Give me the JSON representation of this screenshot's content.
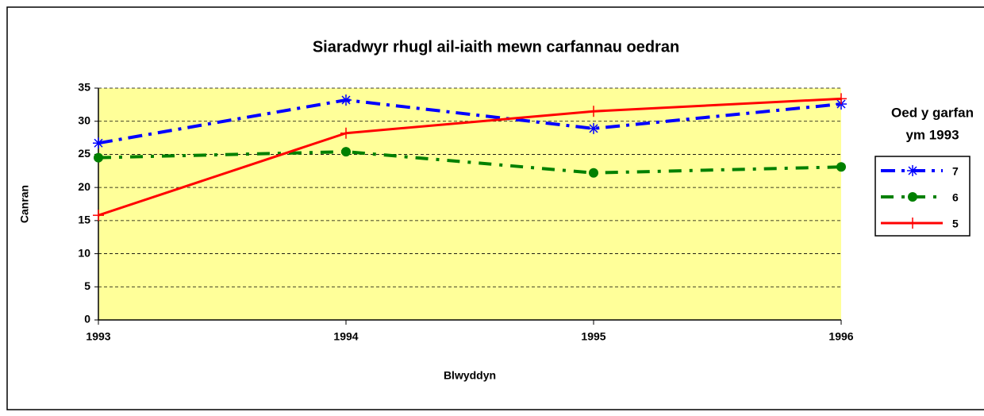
{
  "chart_data": {
    "type": "line",
    "title": "Siaradwyr rhugl ail-iaith mewn carfannau oedran",
    "x_label": "Blwyddyn",
    "y_label": "Canran",
    "categories": [
      "1993",
      "1994",
      "1995",
      "1996"
    ],
    "series": [
      {
        "name": "7",
        "color": "#0000ff",
        "dash": "dashdot",
        "marker": "star",
        "values": [
          26.7,
          33.2,
          28.9,
          32.6
        ]
      },
      {
        "name": "6",
        "color": "#008000",
        "dash": "dash",
        "marker": "circle",
        "values": [
          24.5,
          25.4,
          22.2,
          23.1
        ]
      },
      {
        "name": "5",
        "color": "#ff0000",
        "dash": "solid",
        "marker": "plus",
        "values": [
          15.8,
          28.2,
          31.5,
          33.4
        ]
      }
    ],
    "ylim": [
      0,
      35
    ],
    "yticks": [
      0,
      5,
      10,
      15,
      20,
      25,
      30,
      35
    ],
    "grid": true,
    "legend_title": [
      "Oed y garfan",
      "ym 1993"
    ],
    "legend_position": "right",
    "plot_background": "#ffff99"
  }
}
